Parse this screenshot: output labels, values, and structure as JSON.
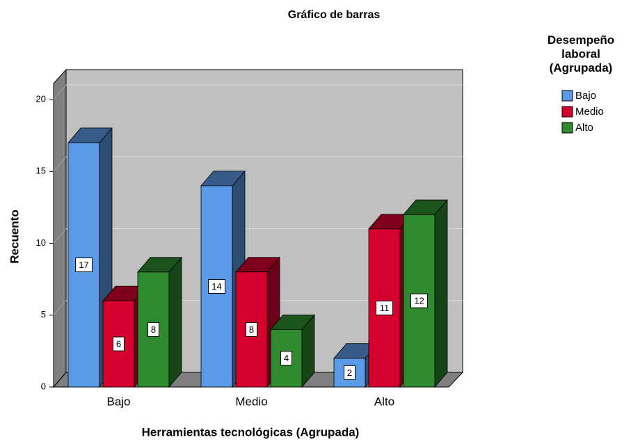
{
  "chart_data": {
    "type": "bar3d",
    "title": "Gráfico de barras",
    "x_label": "Herramientas tecnológicas (Agrupada)",
    "y_label": "Recuento",
    "legend_title": "Desempeño laboral (Agrupada)",
    "categories": [
      "Bajo",
      "Medio",
      "Alto"
    ],
    "series": [
      {
        "name": "Bajo",
        "color": "#5b9ae6",
        "values": [
          17,
          14,
          2
        ]
      },
      {
        "name": "Medio",
        "color": "#d6002f",
        "values": [
          6,
          8,
          11
        ]
      },
      {
        "name": "Alto",
        "color": "#2e8a2e",
        "values": [
          8,
          4,
          12
        ]
      }
    ],
    "ylim": [
      0,
      21
    ],
    "yticks": [
      0,
      5,
      10,
      15,
      20
    ],
    "grid": true
  }
}
